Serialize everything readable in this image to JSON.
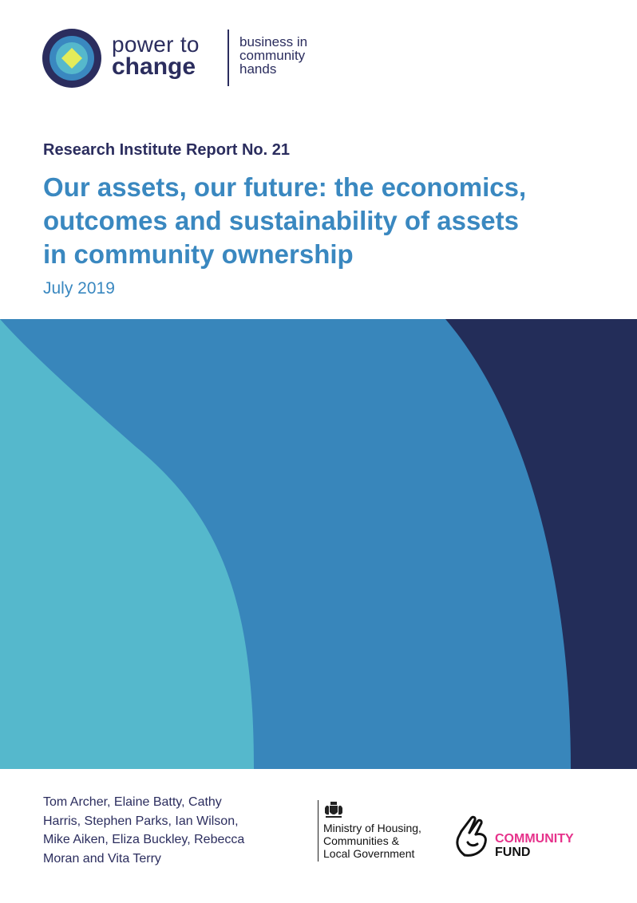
{
  "brand": {
    "name_line1": "power to",
    "name_line2": "change",
    "tagline": [
      "business in",
      "community",
      "hands"
    ]
  },
  "report": {
    "series": "Research Institute Report No. 21",
    "title_lines": [
      "Our assets, our future: the economics,",
      "outcomes and sustainability of assets",
      "in community ownership"
    ],
    "date": "July 2019"
  },
  "authors": [
    "Tom Archer, Elaine Batty, Cathy",
    "Harris, Stephen Parks, Ian Wilson,",
    "Mike Aiken, Eliza Buckley, Rebecca",
    "Moran and Vita Terry"
  ],
  "partners": {
    "mhclg": [
      "Ministry of Housing,",
      "Communities &",
      "Local Government"
    ],
    "community_fund": [
      "COMMUNITY",
      "FUND"
    ]
  },
  "colors": {
    "navy": "#2b2d5e",
    "blue": "#3a88c0",
    "cyan": "#55b8cc",
    "dark_band": "#232d59",
    "lime": "#e3ec5a",
    "pink": "#e6328b"
  },
  "icons": {
    "brand_logo": "concentric-diamond-logo",
    "crest": "royal-coat-of-arms-icon",
    "fund_logo": "crossed-fingers-hand-icon"
  }
}
